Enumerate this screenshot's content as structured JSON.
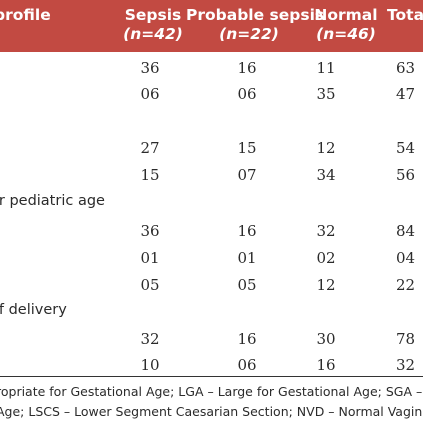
{
  "header": {
    "col_profile": "profile",
    "col_sepsis": "Sepsis",
    "col_sepsis_n": "(n=42)",
    "col_probable": "Probable sepsis",
    "col_probable_n": "(n=22)",
    "col_normal": "Normal",
    "col_normal_n": "(n=46)",
    "col_total": "Total"
  },
  "rows": [
    {
      "sepsis": "36",
      "probable": "16",
      "normal": "11",
      "total": "63"
    },
    {
      "sepsis": "06",
      "probable": "06",
      "normal": "35",
      "total": "47"
    },
    {
      "sepsis": "27",
      "probable": "15",
      "normal": "12",
      "total": "54"
    },
    {
      "sepsis": "15",
      "probable": "07",
      "normal": "34",
      "total": "56"
    },
    {
      "sepsis": "36",
      "probable": "16",
      "normal": "32",
      "total": "84"
    },
    {
      "sepsis": "01",
      "probable": "01",
      "normal": "02",
      "total": "04"
    },
    {
      "sepsis": "05",
      "probable": "05",
      "normal": "12",
      "total": "22"
    },
    {
      "sepsis": "32",
      "probable": "16",
      "normal": "30",
      "total": "78"
    },
    {
      "sepsis": "10",
      "probable": "06",
      "normal": "16",
      "total": "32"
    }
  ],
  "sections": {
    "pediatric_age": "or pediatric age",
    "delivery": "of delivery"
  },
  "footnotes": {
    "line1": "ropriate for Gestational Age; LGA – Large for Gestational Age; SGA – Sm",
    "line2": "Age; LSCS – Lower Segment Caesarian Section; NVD – Normal Vaginal"
  },
  "colors": {
    "header_background": "#c24a42",
    "header_text": "#ffffff"
  }
}
